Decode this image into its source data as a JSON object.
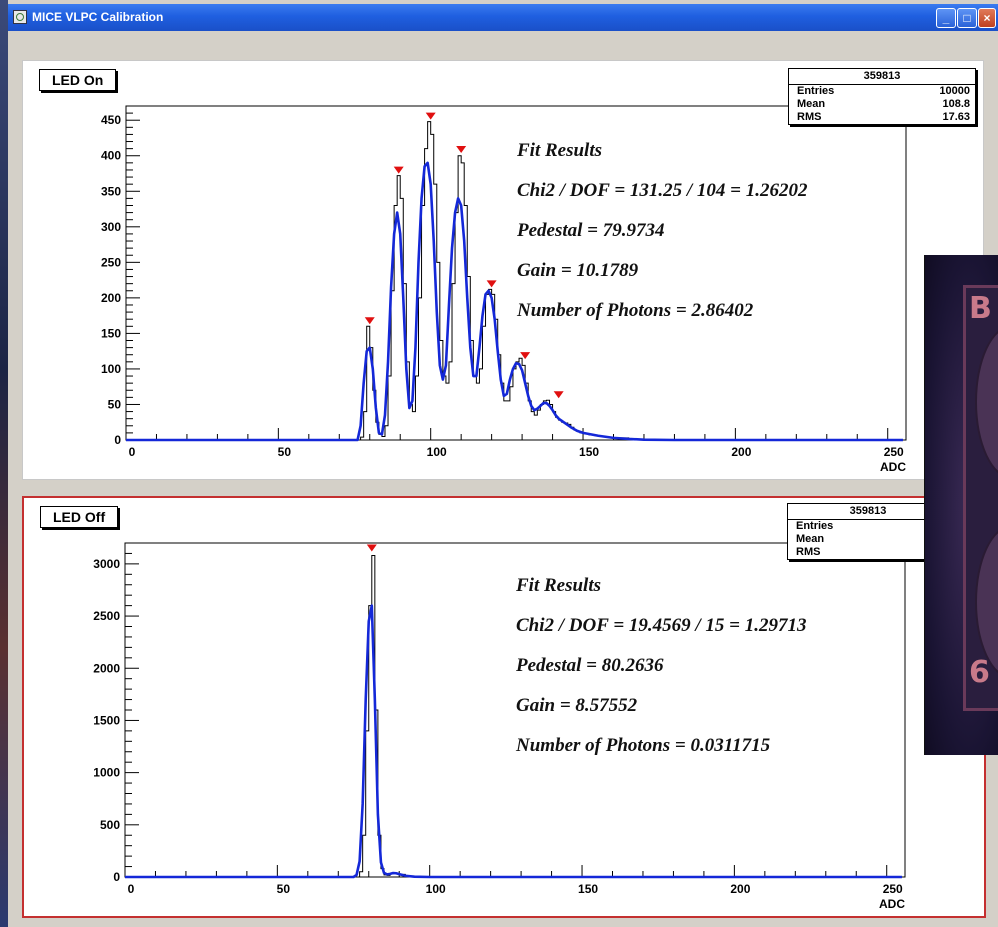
{
  "window": {
    "title": "MICE VLPC Calibration"
  },
  "colors": {
    "fit": "#1428d8",
    "hist": "#000000",
    "peak": "#e01010",
    "pad_border": "#c43030"
  },
  "photo": {
    "letter_top": "B",
    "digit_bottom": "6"
  },
  "chart_data": [
    {
      "type": "histogram",
      "label": "LED On",
      "xlabel": "ADC",
      "xlim": [
        0,
        256
      ],
      "ylim": [
        0,
        470
      ],
      "xticks": [
        0,
        50,
        100,
        150,
        200,
        250
      ],
      "yticks": [
        0,
        50,
        100,
        150,
        200,
        250,
        300,
        350,
        400,
        450
      ],
      "stats": {
        "name": "359813",
        "entries_label": "Entries",
        "entries": "10000",
        "mean_label": "Mean",
        "mean": "108.8",
        "rms_label": "RMS",
        "rms": "17.63"
      },
      "fit_results": [
        "Fit Results",
        "Chi2 / DOF = 131.25 / 104 = 1.26202",
        "Pedestal = 79.9734",
        "Gain = 10.1789",
        "Number of Photons = 2.86402"
      ],
      "peaks": [
        [
          80,
          160
        ],
        [
          89.5,
          372
        ],
        [
          100,
          448
        ],
        [
          110,
          401
        ],
        [
          120,
          212
        ],
        [
          131,
          111
        ],
        [
          142,
          56
        ]
      ],
      "hist": [
        [
          0,
          0
        ],
        [
          75,
          0
        ],
        [
          77,
          4
        ],
        [
          78,
          40
        ],
        [
          79,
          160
        ],
        [
          80,
          130
        ],
        [
          81,
          70
        ],
        [
          82,
          25
        ],
        [
          83,
          8
        ],
        [
          84,
          5
        ],
        [
          85,
          20
        ],
        [
          86,
          90
        ],
        [
          87,
          210
        ],
        [
          88,
          330
        ],
        [
          89,
          372
        ],
        [
          90,
          340
        ],
        [
          91,
          220
        ],
        [
          92,
          110
        ],
        [
          93,
          50
        ],
        [
          94,
          40
        ],
        [
          95,
          90
        ],
        [
          96,
          200
        ],
        [
          97,
          330
        ],
        [
          98,
          410
        ],
        [
          99,
          448
        ],
        [
          100,
          430
        ],
        [
          101,
          360
        ],
        [
          102,
          250
        ],
        [
          103,
          140
        ],
        [
          104,
          90
        ],
        [
          105,
          80
        ],
        [
          106,
          110
        ],
        [
          107,
          220
        ],
        [
          108,
          320
        ],
        [
          109,
          400
        ],
        [
          110,
          390
        ],
        [
          111,
          330
        ],
        [
          112,
          230
        ],
        [
          113,
          140
        ],
        [
          114,
          90
        ],
        [
          115,
          80
        ],
        [
          116,
          100
        ],
        [
          117,
          160
        ],
        [
          118,
          205
        ],
        [
          119,
          212
        ],
        [
          120,
          205
        ],
        [
          121,
          170
        ],
        [
          122,
          120
        ],
        [
          123,
          80
        ],
        [
          124,
          55
        ],
        [
          125,
          55
        ],
        [
          126,
          75
        ],
        [
          127,
          100
        ],
        [
          128,
          110
        ],
        [
          129,
          115
        ],
        [
          130,
          105
        ],
        [
          131,
          80
        ],
        [
          132,
          55
        ],
        [
          133,
          40
        ],
        [
          134,
          35
        ],
        [
          135,
          42
        ],
        [
          136,
          50
        ],
        [
          137,
          55
        ],
        [
          138,
          56
        ],
        [
          139,
          50
        ],
        [
          140,
          40
        ],
        [
          141,
          32
        ],
        [
          142,
          28
        ],
        [
          143,
          25
        ],
        [
          144,
          24
        ],
        [
          145,
          22
        ],
        [
          146,
          18
        ],
        [
          147,
          14
        ],
        [
          148,
          12
        ],
        [
          149,
          10
        ],
        [
          150,
          9
        ],
        [
          152,
          7
        ],
        [
          154,
          6
        ],
        [
          156,
          5
        ],
        [
          158,
          4
        ],
        [
          160,
          3
        ],
        [
          165,
          1
        ],
        [
          170,
          0
        ],
        [
          255,
          0
        ]
      ],
      "fit": [
        [
          0,
          0
        ],
        [
          76,
          0
        ],
        [
          77,
          20
        ],
        [
          78,
          80
        ],
        [
          79,
          125
        ],
        [
          80,
          130
        ],
        [
          81,
          100
        ],
        [
          82,
          45
        ],
        [
          83,
          10
        ],
        [
          84,
          8
        ],
        [
          85,
          35
        ],
        [
          86,
          110
        ],
        [
          87,
          215
        ],
        [
          88,
          290
        ],
        [
          89,
          320
        ],
        [
          90,
          290
        ],
        [
          91,
          200
        ],
        [
          92,
          100
        ],
        [
          93,
          45
        ],
        [
          94,
          55
        ],
        [
          95,
          130
        ],
        [
          96,
          250
        ],
        [
          97,
          340
        ],
        [
          98,
          385
        ],
        [
          99,
          390
        ],
        [
          100,
          360
        ],
        [
          101,
          280
        ],
        [
          102,
          180
        ],
        [
          103,
          105
        ],
        [
          104,
          85
        ],
        [
          105,
          105
        ],
        [
          106,
          190
        ],
        [
          107,
          270
        ],
        [
          108,
          320
        ],
        [
          109,
          340
        ],
        [
          110,
          330
        ],
        [
          111,
          280
        ],
        [
          112,
          200
        ],
        [
          113,
          130
        ],
        [
          114,
          90
        ],
        [
          115,
          90
        ],
        [
          116,
          130
        ],
        [
          117,
          175
        ],
        [
          118,
          205
        ],
        [
          119,
          210
        ],
        [
          120,
          200
        ],
        [
          121,
          170
        ],
        [
          122,
          125
        ],
        [
          123,
          85
        ],
        [
          124,
          62
        ],
        [
          125,
          65
        ],
        [
          126,
          85
        ],
        [
          127,
          100
        ],
        [
          128,
          108
        ],
        [
          129,
          107
        ],
        [
          130,
          98
        ],
        [
          131,
          80
        ],
        [
          132,
          62
        ],
        [
          133,
          48
        ],
        [
          134,
          42
        ],
        [
          135,
          44
        ],
        [
          136,
          48
        ],
        [
          137,
          52
        ],
        [
          138,
          52
        ],
        [
          139,
          48
        ],
        [
          140,
          42
        ],
        [
          141,
          35
        ],
        [
          142,
          30
        ],
        [
          144,
          24
        ],
        [
          146,
          18
        ],
        [
          148,
          13
        ],
        [
          150,
          10
        ],
        [
          155,
          6
        ],
        [
          160,
          3
        ],
        [
          165,
          1.5
        ],
        [
          170,
          0.5
        ],
        [
          180,
          0
        ],
        [
          255,
          0
        ]
      ]
    },
    {
      "type": "histogram",
      "label": "LED Off",
      "xlabel": "ADC",
      "xlim": [
        0,
        256
      ],
      "ylim": [
        0,
        3200
      ],
      "xticks": [
        0,
        50,
        100,
        150,
        200,
        250
      ],
      "yticks": [
        0,
        500,
        1000,
        1500,
        2000,
        2500,
        3000
      ],
      "stats": {
        "name": "359813",
        "entries_label": "Entries",
        "mean_label": "Mean",
        "rms_label": "RMS"
      },
      "fit_results": [
        "Fit Results",
        "Chi2 / DOF = 19.4569 / 15 = 1.29713",
        "Pedestal = 80.2636",
        "Gain = 8.57552",
        "Number of Photons = 0.0311715"
      ],
      "peaks": [
        [
          81,
          3100
        ]
      ],
      "hist": [
        [
          0,
          0
        ],
        [
          76,
          0
        ],
        [
          77,
          50
        ],
        [
          78,
          400
        ],
        [
          79,
          1400
        ],
        [
          80,
          2600
        ],
        [
          81,
          3080
        ],
        [
          82,
          1600
        ],
        [
          83,
          400
        ],
        [
          84,
          80
        ],
        [
          85,
          20
        ],
        [
          86,
          15
        ],
        [
          87,
          30
        ],
        [
          88,
          40
        ],
        [
          89,
          35
        ],
        [
          90,
          25
        ],
        [
          92,
          10
        ],
        [
          95,
          4
        ],
        [
          100,
          0
        ],
        [
          255,
          0
        ]
      ],
      "fit": [
        [
          0,
          0
        ],
        [
          75,
          0
        ],
        [
          76,
          20
        ],
        [
          77,
          150
        ],
        [
          78,
          700
        ],
        [
          79,
          1700
        ],
        [
          80,
          2450
        ],
        [
          81,
          2600
        ],
        [
          82,
          1700
        ],
        [
          83,
          600
        ],
        [
          84,
          140
        ],
        [
          85,
          40
        ],
        [
          86,
          25
        ],
        [
          87,
          30
        ],
        [
          88,
          38
        ],
        [
          89,
          36
        ],
        [
          90,
          28
        ],
        [
          92,
          12
        ],
        [
          95,
          3
        ],
        [
          100,
          0
        ],
        [
          255,
          0
        ]
      ]
    }
  ]
}
